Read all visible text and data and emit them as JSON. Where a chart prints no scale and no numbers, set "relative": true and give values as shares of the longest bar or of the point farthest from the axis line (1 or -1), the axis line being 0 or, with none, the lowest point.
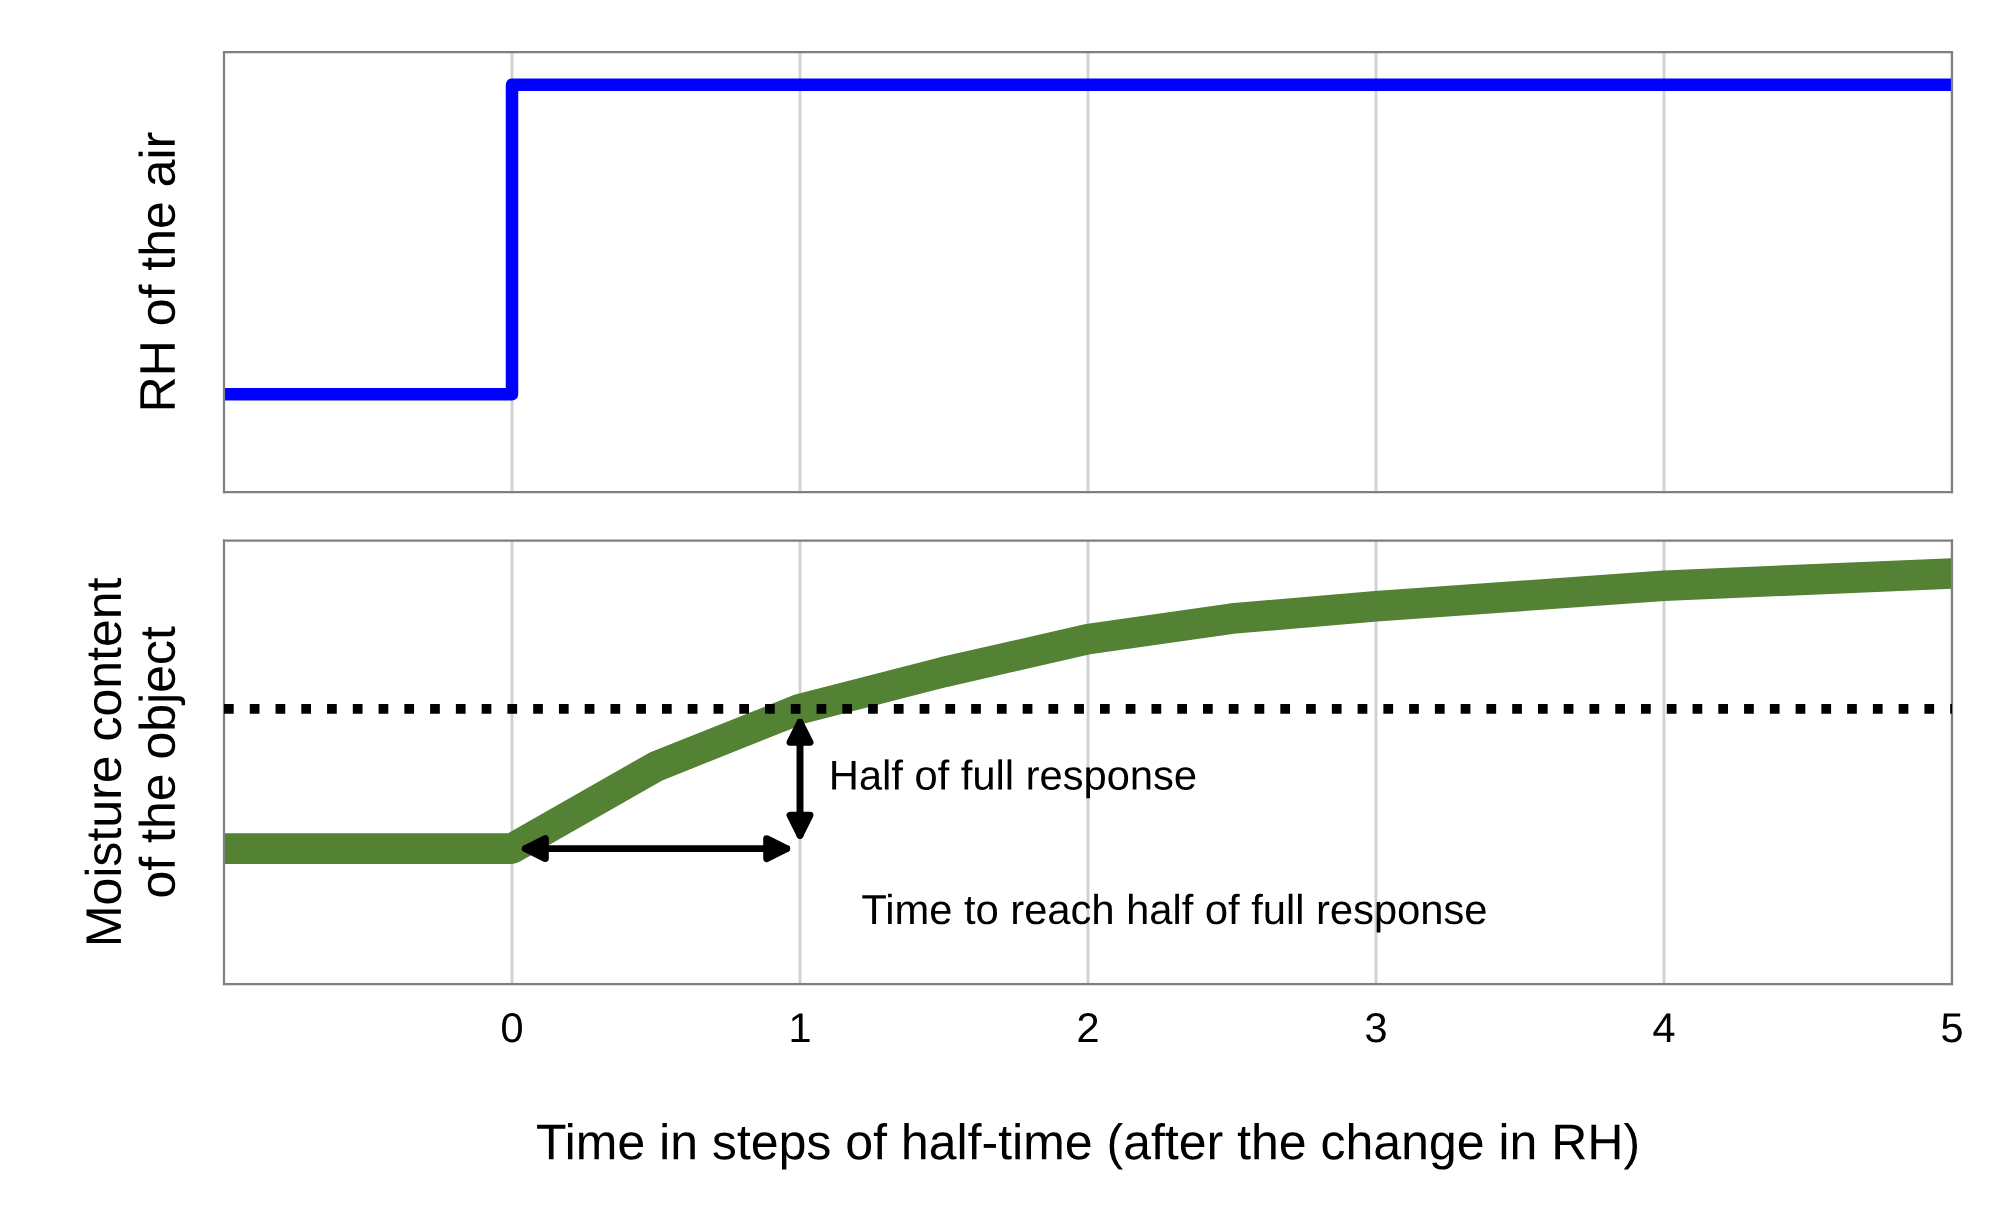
{
  "chart_data": [
    {
      "type": "line",
      "ylabel": "RH of the air",
      "relative": true,
      "xlim": [
        -1,
        5
      ],
      "xticks": [
        0,
        1,
        2,
        3,
        4,
        5
      ],
      "grid": "x",
      "tick_labels": false,
      "series": [
        {
          "color": "#0000ff",
          "x": [
            -1,
            -0.5,
            0,
            0,
            1,
            2,
            3,
            4,
            5
          ],
          "values": [
            0.24,
            0.24,
            0.24,
            1,
            1,
            1,
            1,
            1,
            1
          ]
        }
      ]
    },
    {
      "type": "line",
      "ylabel": "Moisture content\nof the object",
      "xlabel": "Time in steps of half-time (after the change in RH)",
      "relative": true,
      "xlim": [
        -1,
        5
      ],
      "xticks": [
        0,
        1,
        2,
        3,
        4,
        5
      ],
      "grid": "x",
      "tick_labels": "x",
      "series": [
        {
          "color": "#548235",
          "x": [
            -1,
            0,
            0.5,
            1,
            1.5,
            2,
            2.5,
            3,
            4,
            5
          ],
          "values": [
            0.33,
            0.33,
            0.53,
            0.67,
            0.76,
            0.84,
            0.89,
            0.92,
            0.97,
            1.0
          ]
        }
      ],
      "ref_lines": [
        {
          "axis": "y",
          "value": 0.67,
          "color": "#000000",
          "line_style": "dotted"
        }
      ],
      "annotations": [
        "Half of full response",
        "Time to reach half of full response"
      ]
    }
  ]
}
